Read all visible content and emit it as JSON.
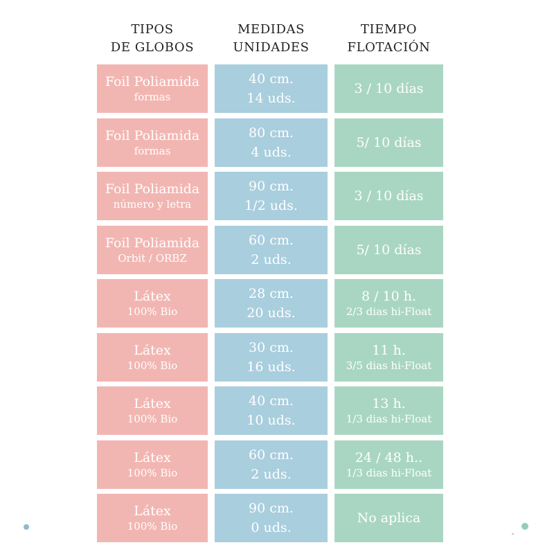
{
  "colors": {
    "page_bg": "#ffffff",
    "type_cell": "#f2b6b2",
    "size_cell": "#a9cede",
    "float_cell": "#a9d6c2",
    "cell_text": "#ffffff",
    "header_text": "#222222",
    "dot_blue": "#8fb9cf",
    "dot_teal": "#96ccbe",
    "speck": "#8a8a8a"
  },
  "chart_data": {
    "type": "table",
    "title": "",
    "columns": [
      {
        "line1": "TIPOS",
        "line2": "DE GLOBOS"
      },
      {
        "line1": "MEDIDAS",
        "line2": "UNIDADES"
      },
      {
        "line1": "TIEMPO",
        "line2": "FLOTACIÓN"
      }
    ],
    "rows": [
      {
        "type": "Foil Poliamida",
        "type_sub": "formas",
        "size": "40 cm.",
        "units": "14 uds.",
        "float_time": "3 / 10 días",
        "float_sub": ""
      },
      {
        "type": "Foil Poliamida",
        "type_sub": "formas",
        "size": "80 cm.",
        "units": "4 uds.",
        "float_time": "5/ 10 días",
        "float_sub": ""
      },
      {
        "type": "Foil Poliamida",
        "type_sub": "número y letra",
        "size": "90 cm.",
        "units": "1/2 uds.",
        "float_time": "3 / 10 días",
        "float_sub": ""
      },
      {
        "type": "Foil Poliamida",
        "type_sub": "Orbit / ORBZ",
        "size": "60 cm.",
        "units": "2 uds.",
        "float_time": "5/ 10 días",
        "float_sub": ""
      },
      {
        "type": "Látex",
        "type_sub": "100% Bio",
        "size": "28 cm.",
        "units": "20 uds.",
        "float_time": "8 / 10 h.",
        "float_sub": "2/3 dias hi-Float"
      },
      {
        "type": "Látex",
        "type_sub": "100% Bio",
        "size": "30 cm.",
        "units": "16 uds.",
        "float_time": "11 h.",
        "float_sub": "3/5 dias hi-Float"
      },
      {
        "type": "Látex",
        "type_sub": "100% Bio",
        "size": "40 cm.",
        "units": "10 uds.",
        "float_time": "13 h.",
        "float_sub": "1/3 dias hi-Float"
      },
      {
        "type": "Látex",
        "type_sub": "100% Bio",
        "size": "60 cm.",
        "units": "2 uds.",
        "float_time": "24 / 48 h..",
        "float_sub": "1/3 dias hi-Float"
      },
      {
        "type": "Látex",
        "type_sub": "100% Bio",
        "size": "90 cm.",
        "units": "0 uds.",
        "float_time": "No aplica",
        "float_sub": ""
      }
    ]
  }
}
